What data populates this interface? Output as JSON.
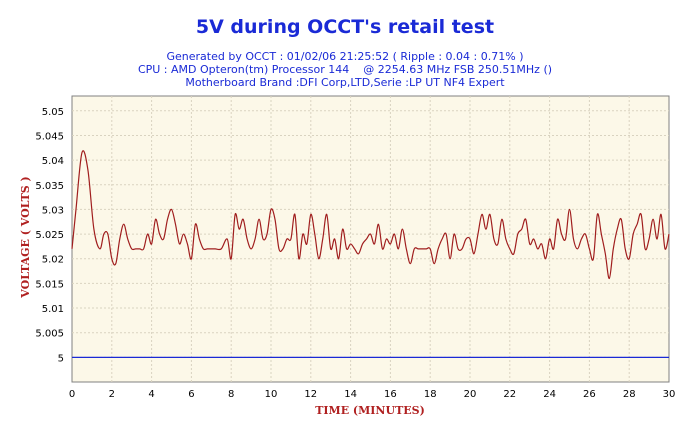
{
  "title": "5V during OCCT's retail test",
  "info_lines": [
    "Generated by OCCT : 01/02/06 21:25:52 ( Ripple : 0.04 : 0.71% )",
    "CPU : AMD Opteron(tm) Processor 144    @ 2254.63 MHz FSB 250.51MHz ()",
    "Motherboard Brand :DFI Corp,LTD,Serie :LP UT NF4 Expert"
  ],
  "colors": {
    "title": "#1a2ad6",
    "plot_background": "#fcf8e8",
    "grid": "#d9d3c0",
    "series_line": "#a01e1e",
    "reference_line": "#1a2ad6",
    "axis_title": "#b02020"
  },
  "chart_data": {
    "type": "line",
    "title": "5V during OCCT's retail test",
    "xlabel": "TIME (MINUTES)",
    "ylabel": "VOLTAGE ( VOLTS )",
    "xlim": [
      0,
      30
    ],
    "ylim": [
      4.995,
      5.053
    ],
    "x_ticks": [
      0,
      2,
      4,
      6,
      8,
      10,
      12,
      14,
      16,
      18,
      20,
      22,
      24,
      26,
      28,
      30
    ],
    "y_ticks": [
      5,
      5.005,
      5.01,
      5.015,
      5.02,
      5.025,
      5.03,
      5.035,
      5.04,
      5.045,
      5.05
    ],
    "y_tick_labels": [
      "5",
      "5.005",
      "5.01",
      "5.015",
      "5.02",
      "5.025",
      "5.03",
      "5.035",
      "5.04",
      "5.045",
      "5.05"
    ],
    "grid": true,
    "legend": "none",
    "series": [
      {
        "x": [
          0,
          0.2,
          0.5,
          0.8,
          1.1,
          1.4,
          1.6,
          1.8,
          2.0,
          2.2,
          2.4,
          2.6,
          2.8,
          3.0,
          3.2,
          3.4,
          3.6,
          3.8,
          4.0,
          4.2,
          4.4,
          4.6,
          4.8,
          5.0,
          5.2,
          5.4,
          5.6,
          5.8,
          6.0,
          6.2,
          6.4,
          6.6,
          6.8,
          7.0,
          7.2,
          7.5,
          7.8,
          8.0,
          8.2,
          8.4,
          8.6,
          8.8,
          9.0,
          9.2,
          9.4,
          9.6,
          9.8,
          10.0,
          10.2,
          10.4,
          10.6,
          10.8,
          11.0,
          11.2,
          11.4,
          11.6,
          11.8,
          12.0,
          12.2,
          12.4,
          12.6,
          12.8,
          13.0,
          13.2,
          13.4,
          13.6,
          13.8,
          14.0,
          14.2,
          14.4,
          14.6,
          14.8,
          15.0,
          15.2,
          15.4,
          15.6,
          15.8,
          16.0,
          16.2,
          16.4,
          16.6,
          16.8,
          17.0,
          17.2,
          17.4,
          17.6,
          17.8,
          18.0,
          18.2,
          18.4,
          18.6,
          18.8,
          19.0,
          19.2,
          19.4,
          19.6,
          19.8,
          20.0,
          20.2,
          20.4,
          20.6,
          20.8,
          21.0,
          21.2,
          21.4,
          21.6,
          21.8,
          22.0,
          22.2,
          22.4,
          22.6,
          22.8,
          23.0,
          23.2,
          23.4,
          23.6,
          23.8,
          24.0,
          24.2,
          24.4,
          24.6,
          24.8,
          25.0,
          25.2,
          25.4,
          25.6,
          25.8,
          26.0,
          26.2,
          26.4,
          26.6,
          26.8,
          27.0,
          27.2,
          27.4,
          27.6,
          27.8,
          28.0,
          28.2,
          28.4,
          28.6,
          28.8,
          29.0,
          29.2,
          29.4,
          29.6,
          29.8,
          30.0
        ],
        "y": [
          5.022,
          5.03,
          5.0415,
          5.038,
          5.026,
          5.022,
          5.025,
          5.025,
          5.02,
          5.019,
          5.024,
          5.027,
          5.024,
          5.022,
          5.022,
          5.022,
          5.022,
          5.025,
          5.023,
          5.028,
          5.025,
          5.024,
          5.028,
          5.03,
          5.027,
          5.023,
          5.025,
          5.023,
          5.02,
          5.027,
          5.024,
          5.022,
          5.022,
          5.022,
          5.022,
          5.022,
          5.024,
          5.02,
          5.029,
          5.026,
          5.028,
          5.024,
          5.022,
          5.024,
          5.028,
          5.024,
          5.025,
          5.03,
          5.028,
          5.022,
          5.022,
          5.024,
          5.024,
          5.029,
          5.02,
          5.025,
          5.023,
          5.029,
          5.025,
          5.02,
          5.024,
          5.029,
          5.022,
          5.024,
          5.02,
          5.026,
          5.022,
          5.023,
          5.022,
          5.021,
          5.023,
          5.024,
          5.025,
          5.023,
          5.027,
          5.022,
          5.024,
          5.023,
          5.025,
          5.022,
          5.026,
          5.022,
          5.019,
          5.022,
          5.022,
          5.022,
          5.022,
          5.022,
          5.019,
          5.022,
          5.024,
          5.025,
          5.02,
          5.025,
          5.022,
          5.022,
          5.024,
          5.024,
          5.021,
          5.025,
          5.029,
          5.026,
          5.029,
          5.024,
          5.023,
          5.028,
          5.024,
          5.022,
          5.021,
          5.025,
          5.026,
          5.028,
          5.023,
          5.024,
          5.022,
          5.023,
          5.02,
          5.024,
          5.022,
          5.028,
          5.025,
          5.024,
          5.03,
          5.024,
          5.022,
          5.024,
          5.025,
          5.022,
          5.02,
          5.029,
          5.025,
          5.021,
          5.016,
          5.022,
          5.026,
          5.028,
          5.022,
          5.02,
          5.025,
          5.027,
          5.029,
          5.022,
          5.024,
          5.028,
          5.024,
          5.029,
          5.022,
          5.025
        ]
      },
      {
        "x": [
          0,
          30
        ],
        "y": [
          5.0,
          5.0
        ]
      }
    ]
  }
}
